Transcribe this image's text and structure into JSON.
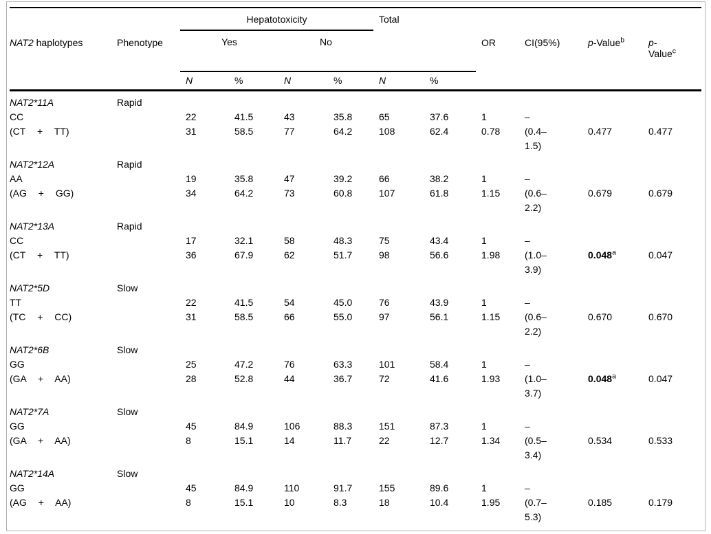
{
  "frame": {
    "border_color": "#b0b0b0",
    "rule_color": "#000000"
  },
  "table": {
    "header": {
      "haplotypes": {
        "italic": "NAT2",
        "rest": " haplotypes"
      },
      "phenotype": "Phenotype",
      "hepatotoxicity": "Hepatotoxicity",
      "yes": "Yes",
      "no": "No",
      "total": "Total",
      "or": "OR",
      "ci": "CI(95%)",
      "p_value_b": {
        "italic": "p",
        "rest": "-Value",
        "sup": "b"
      },
      "p_value_c": {
        "italic": "p",
        "dash": "-",
        "line2": "Value",
        "sup": "c"
      },
      "n": "N",
      "pct": "%"
    },
    "groups": [
      {
        "haplotype": "NAT2*11A",
        "phenotype": "Rapid",
        "rows": [
          {
            "genotype": "CC",
            "yes_n": "22",
            "yes_pct": "41.5",
            "no_n": "43",
            "no_pct": "35.8",
            "total_n": "65",
            "total_pct": "37.6",
            "or": "1",
            "ci_1": "–",
            "ci_2": "",
            "p_b": "",
            "p_b_bold": false,
            "p_b_sup": "",
            "p_c": ""
          },
          {
            "genotype": "(CT + TT)",
            "yes_n": "31",
            "yes_pct": "58.5",
            "no_n": "77",
            "no_pct": "64.2",
            "total_n": "108",
            "total_pct": "62.4",
            "or": "0.78",
            "ci_1": "(0.4–",
            "ci_2": "1.5)",
            "p_b": "0.477",
            "p_b_bold": false,
            "p_b_sup": "",
            "p_c": "0.477"
          }
        ]
      },
      {
        "haplotype": "NAT2*12A",
        "phenotype": "Rapid",
        "rows": [
          {
            "genotype": "AA",
            "yes_n": "19",
            "yes_pct": "35.8",
            "no_n": "47",
            "no_pct": "39.2",
            "total_n": "66",
            "total_pct": "38.2",
            "or": "1",
            "ci_1": "–",
            "ci_2": "",
            "p_b": "",
            "p_b_bold": false,
            "p_b_sup": "",
            "p_c": ""
          },
          {
            "genotype": "(AG + GG)",
            "yes_n": "34",
            "yes_pct": "64.2",
            "no_n": "73",
            "no_pct": "60.8",
            "total_n": "107",
            "total_pct": "61.8",
            "or": "1.15",
            "ci_1": "(0.6–",
            "ci_2": "2.2)",
            "p_b": "0.679",
            "p_b_bold": false,
            "p_b_sup": "",
            "p_c": "0.679"
          }
        ]
      },
      {
        "haplotype": "NAT2*13A",
        "phenotype": "Rapid",
        "rows": [
          {
            "genotype": "CC",
            "yes_n": "17",
            "yes_pct": "32.1",
            "no_n": "58",
            "no_pct": "48.3",
            "total_n": "75",
            "total_pct": "43.4",
            "or": "1",
            "ci_1": "–",
            "ci_2": "",
            "p_b": "",
            "p_b_bold": false,
            "p_b_sup": "",
            "p_c": ""
          },
          {
            "genotype": "(CT + TT)",
            "yes_n": "36",
            "yes_pct": "67.9",
            "no_n": "62",
            "no_pct": "51.7",
            "total_n": "98",
            "total_pct": "56.6",
            "or": "1.98",
            "ci_1": "(1.0–",
            "ci_2": "3.9)",
            "p_b": "0.048",
            "p_b_bold": true,
            "p_b_sup": "a",
            "p_c": "0.047"
          }
        ]
      },
      {
        "haplotype": "NAT2*5D",
        "phenotype": "Slow",
        "rows": [
          {
            "genotype": "TT",
            "yes_n": "22",
            "yes_pct": "41.5",
            "no_n": "54",
            "no_pct": "45.0",
            "total_n": "76",
            "total_pct": "43.9",
            "or": "1",
            "ci_1": "–",
            "ci_2": "",
            "p_b": "",
            "p_b_bold": false,
            "p_b_sup": "",
            "p_c": ""
          },
          {
            "genotype": "(TC + CC)",
            "yes_n": "31",
            "yes_pct": "58.5",
            "no_n": "66",
            "no_pct": "55.0",
            "total_n": "97",
            "total_pct": "56.1",
            "or": "1.15",
            "ci_1": "(0.6–",
            "ci_2": "2.2)",
            "p_b": "0.670",
            "p_b_bold": false,
            "p_b_sup": "",
            "p_c": "0.670"
          }
        ]
      },
      {
        "haplotype": "NAT2*6B",
        "phenotype": "Slow",
        "rows": [
          {
            "genotype": "GG",
            "yes_n": "25",
            "yes_pct": "47.2",
            "no_n": "76",
            "no_pct": "63.3",
            "total_n": "101",
            "total_pct": "58.4",
            "or": "1",
            "ci_1": "–",
            "ci_2": "",
            "p_b": "",
            "p_b_bold": false,
            "p_b_sup": "",
            "p_c": ""
          },
          {
            "genotype": "(GA + AA)",
            "yes_n": "28",
            "yes_pct": "52.8",
            "no_n": "44",
            "no_pct": "36.7",
            "total_n": "72",
            "total_pct": "41.6",
            "or": "1.93",
            "ci_1": "(1.0–",
            "ci_2": "3.7)",
            "p_b": "0.048",
            "p_b_bold": true,
            "p_b_sup": "a",
            "p_c": "0.047"
          }
        ]
      },
      {
        "haplotype": "NAT2*7A",
        "phenotype": "Slow",
        "rows": [
          {
            "genotype": "GG",
            "yes_n": "45",
            "yes_pct": "84.9",
            "no_n": "106",
            "no_pct": "88.3",
            "total_n": "151",
            "total_pct": "87.3",
            "or": "1",
            "ci_1": "–",
            "ci_2": "",
            "p_b": "",
            "p_b_bold": false,
            "p_b_sup": "",
            "p_c": ""
          },
          {
            "genotype": "(GA + AA)",
            "yes_n": "8",
            "yes_pct": "15.1",
            "no_n": "14",
            "no_pct": "11.7",
            "total_n": "22",
            "total_pct": "12.7",
            "or": "1.34",
            "ci_1": "(0.5–",
            "ci_2": "3.4)",
            "p_b": "0.534",
            "p_b_bold": false,
            "p_b_sup": "",
            "p_c": "0.533"
          }
        ]
      },
      {
        "haplotype": "NAT2*14A",
        "phenotype": "Slow",
        "rows": [
          {
            "genotype": "GG",
            "yes_n": "45",
            "yes_pct": "84.9",
            "no_n": "110",
            "no_pct": "91.7",
            "total_n": "155",
            "total_pct": "89.6",
            "or": "1",
            "ci_1": "–",
            "ci_2": "",
            "p_b": "",
            "p_b_bold": false,
            "p_b_sup": "",
            "p_c": ""
          },
          {
            "genotype": "(AG + AA)",
            "yes_n": "8",
            "yes_pct": "15.1",
            "no_n": "10",
            "no_pct": "8.3",
            "total_n": "18",
            "total_pct": "10.4",
            "or": "1.95",
            "ci_1": "(0.7–",
            "ci_2": "5.3)",
            "p_b": "0.185",
            "p_b_bold": false,
            "p_b_sup": "",
            "p_c": "0.179"
          }
        ]
      }
    ]
  }
}
